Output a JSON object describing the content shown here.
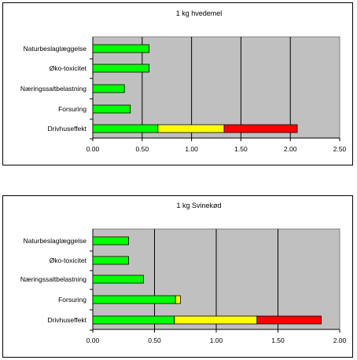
{
  "chart_data": [
    {
      "type": "bar",
      "orientation": "horizontal",
      "stacked": true,
      "title": "1 kg hvedemel",
      "categories": [
        "Naturbeslaglæggelse",
        "Øko-toxicitet",
        "Næringssaltbelastning",
        "Forsuring",
        "Drivhuseffekt"
      ],
      "segments": [
        [
          0.57
        ],
        [
          0.57
        ],
        [
          0.32
        ],
        [
          0.38
        ],
        [
          0.66,
          0.67,
          0.74
        ]
      ],
      "segment_colors": [
        "#00ff00",
        "#ffff00",
        "#ff0000"
      ],
      "xlim": [
        0,
        2.5
      ],
      "xticks": [
        "0.00",
        "0.50",
        "1.00",
        "1.50",
        "2.00",
        "2.50"
      ],
      "xtick_values": [
        0,
        0.5,
        1.0,
        1.5,
        2.0,
        2.5
      ],
      "grid": "vertical",
      "plot_background": "#c0c0c0"
    },
    {
      "type": "bar",
      "orientation": "horizontal",
      "stacked": true,
      "title": "1 kg Svinekød",
      "categories": [
        "Naturbeslaglæggelse",
        "Øko-toxicitet",
        "Næringssaltbelastning",
        "Forsuring",
        "Drivhuseffekt"
      ],
      "segments": [
        [
          0.29
        ],
        [
          0.29
        ],
        [
          0.41
        ],
        [
          0.67,
          0.04
        ],
        [
          0.66,
          0.67,
          0.52
        ]
      ],
      "segment_colors": [
        "#00ff00",
        "#ffff00",
        "#ff0000"
      ],
      "xlim": [
        0,
        2.0
      ],
      "xticks": [
        "0.00",
        "0.50",
        "1.00",
        "1.50",
        "2.00"
      ],
      "xtick_values": [
        0,
        0.5,
        1.0,
        1.5,
        2.0
      ],
      "grid": "vertical",
      "plot_background": "#c0c0c0"
    }
  ]
}
